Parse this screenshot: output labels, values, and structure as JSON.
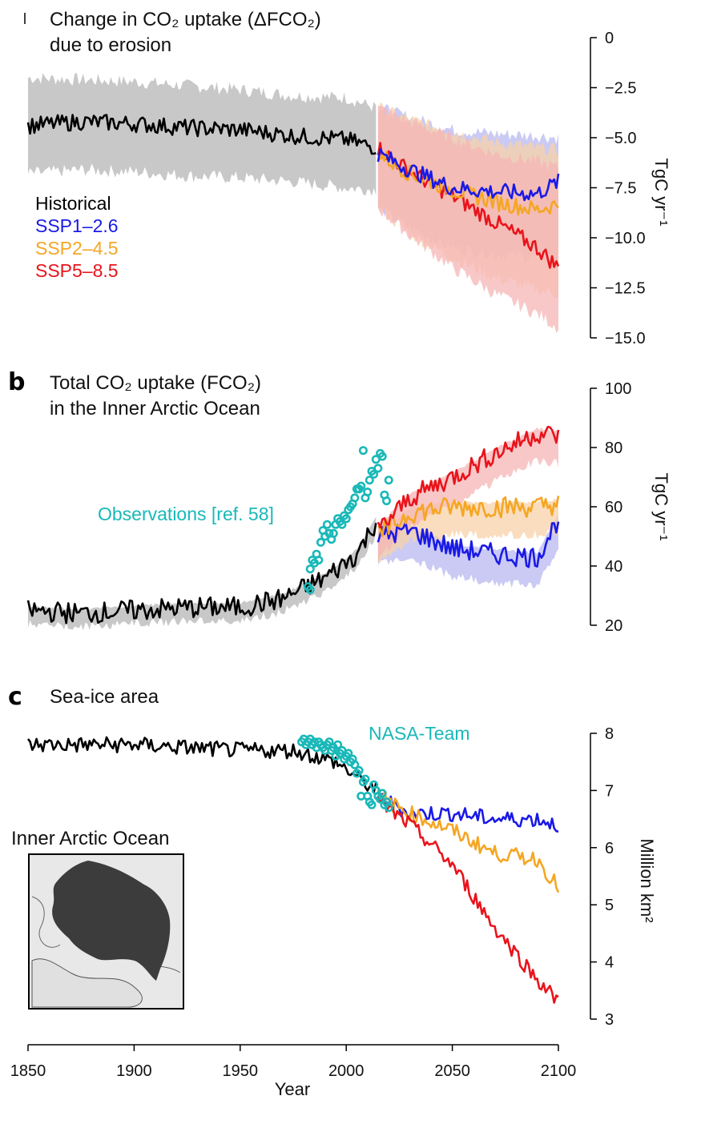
{
  "chart_data": [
    {
      "panel": "a",
      "type": "line",
      "title_line1": "Change in CO₂ uptake (ΔFCO₂)",
      "title_line2": "due to erosion",
      "ylabel": "TgC yr⁻¹",
      "ylim": [
        -15.0,
        0
      ],
      "ticks": [
        0,
        -2.5,
        -5.0,
        -7.5,
        -10.0,
        -12.5,
        -15.0
      ],
      "tick_labels": [
        "0",
        "−2.5",
        "−5.0",
        "−7.5",
        "−10.0",
        "−12.5",
        "−15.0"
      ],
      "legend": [
        {
          "name": "Historical",
          "color": "#000000"
        },
        {
          "name": "SSP1–2.6",
          "color": "#1a1ae6"
        },
        {
          "name": "SSP2–4.5",
          "color": "#f5a623"
        },
        {
          "name": "SSP5–8.5",
          "color": "#e8141c"
        }
      ],
      "series": [
        {
          "name": "Historical",
          "color": "#000000",
          "x": [
            1850,
            1875,
            1900,
            1925,
            1950,
            1975,
            2000,
            2014
          ],
          "values": [
            -4.4,
            -4.2,
            -4.3,
            -4.5,
            -4.6,
            -4.9,
            -5.1,
            -5.5
          ],
          "band": [
            [
              -2.0,
              -6.8
            ],
            [
              -2.1,
              -6.6
            ],
            [
              -2.2,
              -6.7
            ],
            [
              -2.4,
              -6.9
            ],
            [
              -2.6,
              -7.0
            ],
            [
              -2.9,
              -7.2
            ],
            [
              -3.0,
              -7.5
            ],
            [
              -3.5,
              -7.6
            ]
          ]
        },
        {
          "name": "SSP1–2.6",
          "color": "#1a1ae6",
          "x": [
            2015,
            2030,
            2050,
            2070,
            2090,
            2100
          ],
          "values": [
            -5.8,
            -6.6,
            -7.5,
            -7.7,
            -7.8,
            -7.2
          ],
          "band": [
            [
              -3.5,
              -8.5
            ],
            [
              -4.0,
              -9.5
            ],
            [
              -4.6,
              -10.5
            ],
            [
              -4.8,
              -10.8
            ],
            [
              -4.9,
              -11.0
            ],
            [
              -5.0,
              -11.0
            ]
          ]
        },
        {
          "name": "SSP2–4.5",
          "color": "#f5a623",
          "x": [
            2015,
            2030,
            2050,
            2070,
            2090,
            2100
          ],
          "values": [
            -5.8,
            -6.8,
            -7.6,
            -8.2,
            -8.6,
            -8.3
          ],
          "band": [
            [
              -3.5,
              -8.5
            ],
            [
              -4.1,
              -9.8
            ],
            [
              -4.7,
              -11.0
            ],
            [
              -5.2,
              -12.0
            ],
            [
              -5.5,
              -12.6
            ],
            [
              -5.6,
              -12.8
            ]
          ]
        },
        {
          "name": "SSP5–8.5",
          "color": "#e8141c",
          "x": [
            2015,
            2030,
            2050,
            2070,
            2090,
            2100
          ],
          "values": [
            -5.5,
            -6.7,
            -7.9,
            -9.2,
            -10.5,
            -11.5
          ],
          "band": [
            [
              -3.5,
              -8.5
            ],
            [
              -4.2,
              -9.9
            ],
            [
              -5.0,
              -11.5
            ],
            [
              -5.8,
              -12.8
            ],
            [
              -6.2,
              -13.8
            ],
            [
              -6.5,
              -14.5
            ]
          ]
        }
      ]
    },
    {
      "panel": "b",
      "type": "line",
      "title_line1": "Total CO₂ uptake (FCO₂)",
      "title_line2": "in the Inner Arctic Ocean",
      "ylabel": "TgC yr⁻¹",
      "ylim": [
        20,
        100
      ],
      "ticks": [
        20,
        40,
        60,
        80,
        100
      ],
      "tick_labels": [
        "20",
        "40",
        "60",
        "80",
        "100"
      ],
      "observations_label": "Observations [ref. 58]",
      "observations_color": "#1ab8b8",
      "observations": [
        {
          "x": 1982,
          "y": 33
        },
        {
          "x": 1983,
          "y": 32
        },
        {
          "x": 1983,
          "y": 39
        },
        {
          "x": 1984,
          "y": 42
        },
        {
          "x": 1985,
          "y": 41
        },
        {
          "x": 1986,
          "y": 44
        },
        {
          "x": 1987,
          "y": 42
        },
        {
          "x": 1988,
          "y": 48
        },
        {
          "x": 1989,
          "y": 52
        },
        {
          "x": 1990,
          "y": 50
        },
        {
          "x": 1991,
          "y": 54
        },
        {
          "x": 1992,
          "y": 51
        },
        {
          "x": 1993,
          "y": 49
        },
        {
          "x": 1994,
          "y": 51
        },
        {
          "x": 1995,
          "y": 54
        },
        {
          "x": 1996,
          "y": 56
        },
        {
          "x": 1997,
          "y": 55
        },
        {
          "x": 1998,
          "y": 54
        },
        {
          "x": 1999,
          "y": 57
        },
        {
          "x": 2000,
          "y": 56
        },
        {
          "x": 2001,
          "y": 59
        },
        {
          "x": 2002,
          "y": 60
        },
        {
          "x": 2003,
          "y": 61
        },
        {
          "x": 2004,
          "y": 63
        },
        {
          "x": 2005,
          "y": 66
        },
        {
          "x": 2006,
          "y": 66
        },
        {
          "x": 2007,
          "y": 67
        },
        {
          "x": 2008,
          "y": 79
        },
        {
          "x": 2009,
          "y": 63
        },
        {
          "x": 2010,
          "y": 65
        },
        {
          "x": 2011,
          "y": 69
        },
        {
          "x": 2012,
          "y": 72
        },
        {
          "x": 2013,
          "y": 71
        },
        {
          "x": 2014,
          "y": 76
        },
        {
          "x": 2015,
          "y": 73
        },
        {
          "x": 2016,
          "y": 78
        },
        {
          "x": 2017,
          "y": 77
        },
        {
          "x": 2018,
          "y": 64
        },
        {
          "x": 2019,
          "y": 62
        },
        {
          "x": 2020,
          "y": 69
        }
      ],
      "series": [
        {
          "name": "Historical",
          "color": "#000000",
          "x": [
            1850,
            1875,
            1900,
            1925,
            1950,
            1970,
            1990,
            2005,
            2014
          ],
          "values": [
            25,
            24,
            25,
            26,
            26,
            29,
            36,
            44,
            55
          ]
        },
        {
          "name": "SSP1–2.6",
          "color": "#1a1ae6",
          "x": [
            2015,
            2030,
            2050,
            2070,
            2090,
            2100
          ],
          "values": [
            50,
            52,
            46,
            44,
            43,
            56
          ]
        },
        {
          "name": "SSP2–4.5",
          "color": "#f5a623",
          "x": [
            2015,
            2030,
            2050,
            2070,
            2090,
            2100
          ],
          "values": [
            50,
            58,
            60,
            60,
            60,
            61
          ]
        },
        {
          "name": "SSP5–8.5",
          "color": "#e8141c",
          "x": [
            2015,
            2030,
            2050,
            2070,
            2090,
            2100
          ],
          "values": [
            52,
            63,
            70,
            78,
            85,
            84
          ]
        }
      ]
    },
    {
      "panel": "c",
      "type": "line",
      "title": "Sea-ice area",
      "ylabel": "Million km²",
      "ylim": [
        3,
        8
      ],
      "ticks": [
        3,
        4,
        5,
        6,
        7,
        8
      ],
      "tick_labels": [
        "3",
        "4",
        "5",
        "6",
        "7",
        "8"
      ],
      "observations_label": "NASA-Team",
      "observations_color": "#1ab8b8",
      "inset_label": "Inner Arctic Ocean",
      "series": [
        {
          "name": "Historical",
          "color": "#000000",
          "x": [
            1850,
            1875,
            1900,
            1925,
            1950,
            1975,
            1995,
            2014
          ],
          "values": [
            7.8,
            7.8,
            7.8,
            7.75,
            7.7,
            7.7,
            7.5,
            7.0
          ]
        },
        {
          "name": "SSP1–2.6",
          "color": "#1a1ae6",
          "x": [
            2015,
            2030,
            2050,
            2070,
            2090,
            2100
          ],
          "values": [
            6.9,
            6.6,
            6.6,
            6.5,
            6.5,
            6.4
          ]
        },
        {
          "name": "SSP2–4.5",
          "color": "#f5a623",
          "x": [
            2015,
            2030,
            2050,
            2070,
            2090,
            2100
          ],
          "values": [
            6.9,
            6.6,
            6.3,
            5.9,
            5.8,
            5.3
          ]
        },
        {
          "name": "SSP5–8.5",
          "color": "#e8141c",
          "x": [
            2015,
            2030,
            2050,
            2070,
            2090,
            2100
          ],
          "values": [
            6.8,
            6.4,
            5.7,
            4.6,
            3.7,
            3.3
          ]
        }
      ],
      "nasa_team": [
        {
          "x": 1979,
          "y": 7.85
        },
        {
          "x": 1980,
          "y": 7.9
        },
        {
          "x": 1981,
          "y": 7.8
        },
        {
          "x": 1982,
          "y": 7.85
        },
        {
          "x": 1983,
          "y": 7.9
        },
        {
          "x": 1984,
          "y": 7.8
        },
        {
          "x": 1985,
          "y": 7.85
        },
        {
          "x": 1986,
          "y": 7.75
        },
        {
          "x": 1987,
          "y": 7.85
        },
        {
          "x": 1988,
          "y": 7.8
        },
        {
          "x": 1989,
          "y": 7.75
        },
        {
          "x": 1990,
          "y": 7.7
        },
        {
          "x": 1991,
          "y": 7.8
        },
        {
          "x": 1992,
          "y": 7.85
        },
        {
          "x": 1993,
          "y": 7.7
        },
        {
          "x": 1994,
          "y": 7.75
        },
        {
          "x": 1995,
          "y": 7.6
        },
        {
          "x": 1996,
          "y": 7.8
        },
        {
          "x": 1997,
          "y": 7.65
        },
        {
          "x": 1998,
          "y": 7.7
        },
        {
          "x": 1999,
          "y": 7.55
        },
        {
          "x": 2000,
          "y": 7.6
        },
        {
          "x": 2001,
          "y": 7.65
        },
        {
          "x": 2002,
          "y": 7.5
        },
        {
          "x": 2003,
          "y": 7.55
        },
        {
          "x": 2004,
          "y": 7.45
        },
        {
          "x": 2005,
          "y": 7.3
        },
        {
          "x": 2006,
          "y": 7.35
        },
        {
          "x": 2007,
          "y": 6.9
        },
        {
          "x": 2008,
          "y": 7.15
        },
        {
          "x": 2009,
          "y": 7.2
        },
        {
          "x": 2010,
          "y": 6.9
        },
        {
          "x": 2011,
          "y": 6.8
        },
        {
          "x": 2012,
          "y": 6.75
        },
        {
          "x": 2013,
          "y": 7.1
        },
        {
          "x": 2014,
          "y": 7.0
        },
        {
          "x": 2015,
          "y": 6.9
        },
        {
          "x": 2016,
          "y": 6.85
        },
        {
          "x": 2017,
          "y": 6.95
        },
        {
          "x": 2018,
          "y": 6.75
        },
        {
          "x": 2019,
          "y": 6.8
        },
        {
          "x": 2020,
          "y": 6.7
        }
      ]
    }
  ],
  "x_axis": {
    "label": "Year",
    "xlim": [
      1850,
      2100
    ],
    "ticks": [
      1850,
      1900,
      1950,
      2000,
      2050,
      2100
    ],
    "tick_labels": [
      "1850",
      "1900",
      "1950",
      "2000",
      "2050",
      "2100"
    ]
  },
  "panel_letters": [
    "b",
    "c"
  ],
  "colors": {
    "historical_band": "#c8c8c8",
    "ssp1_band": "#b8b8f0",
    "ssp2_band": "#f8d2a8",
    "ssp5_band": "#f5b6b6",
    "obs": "#1ab8b8",
    "map_land": "#e8e8e8",
    "map_ice": "#3c3c3c"
  }
}
